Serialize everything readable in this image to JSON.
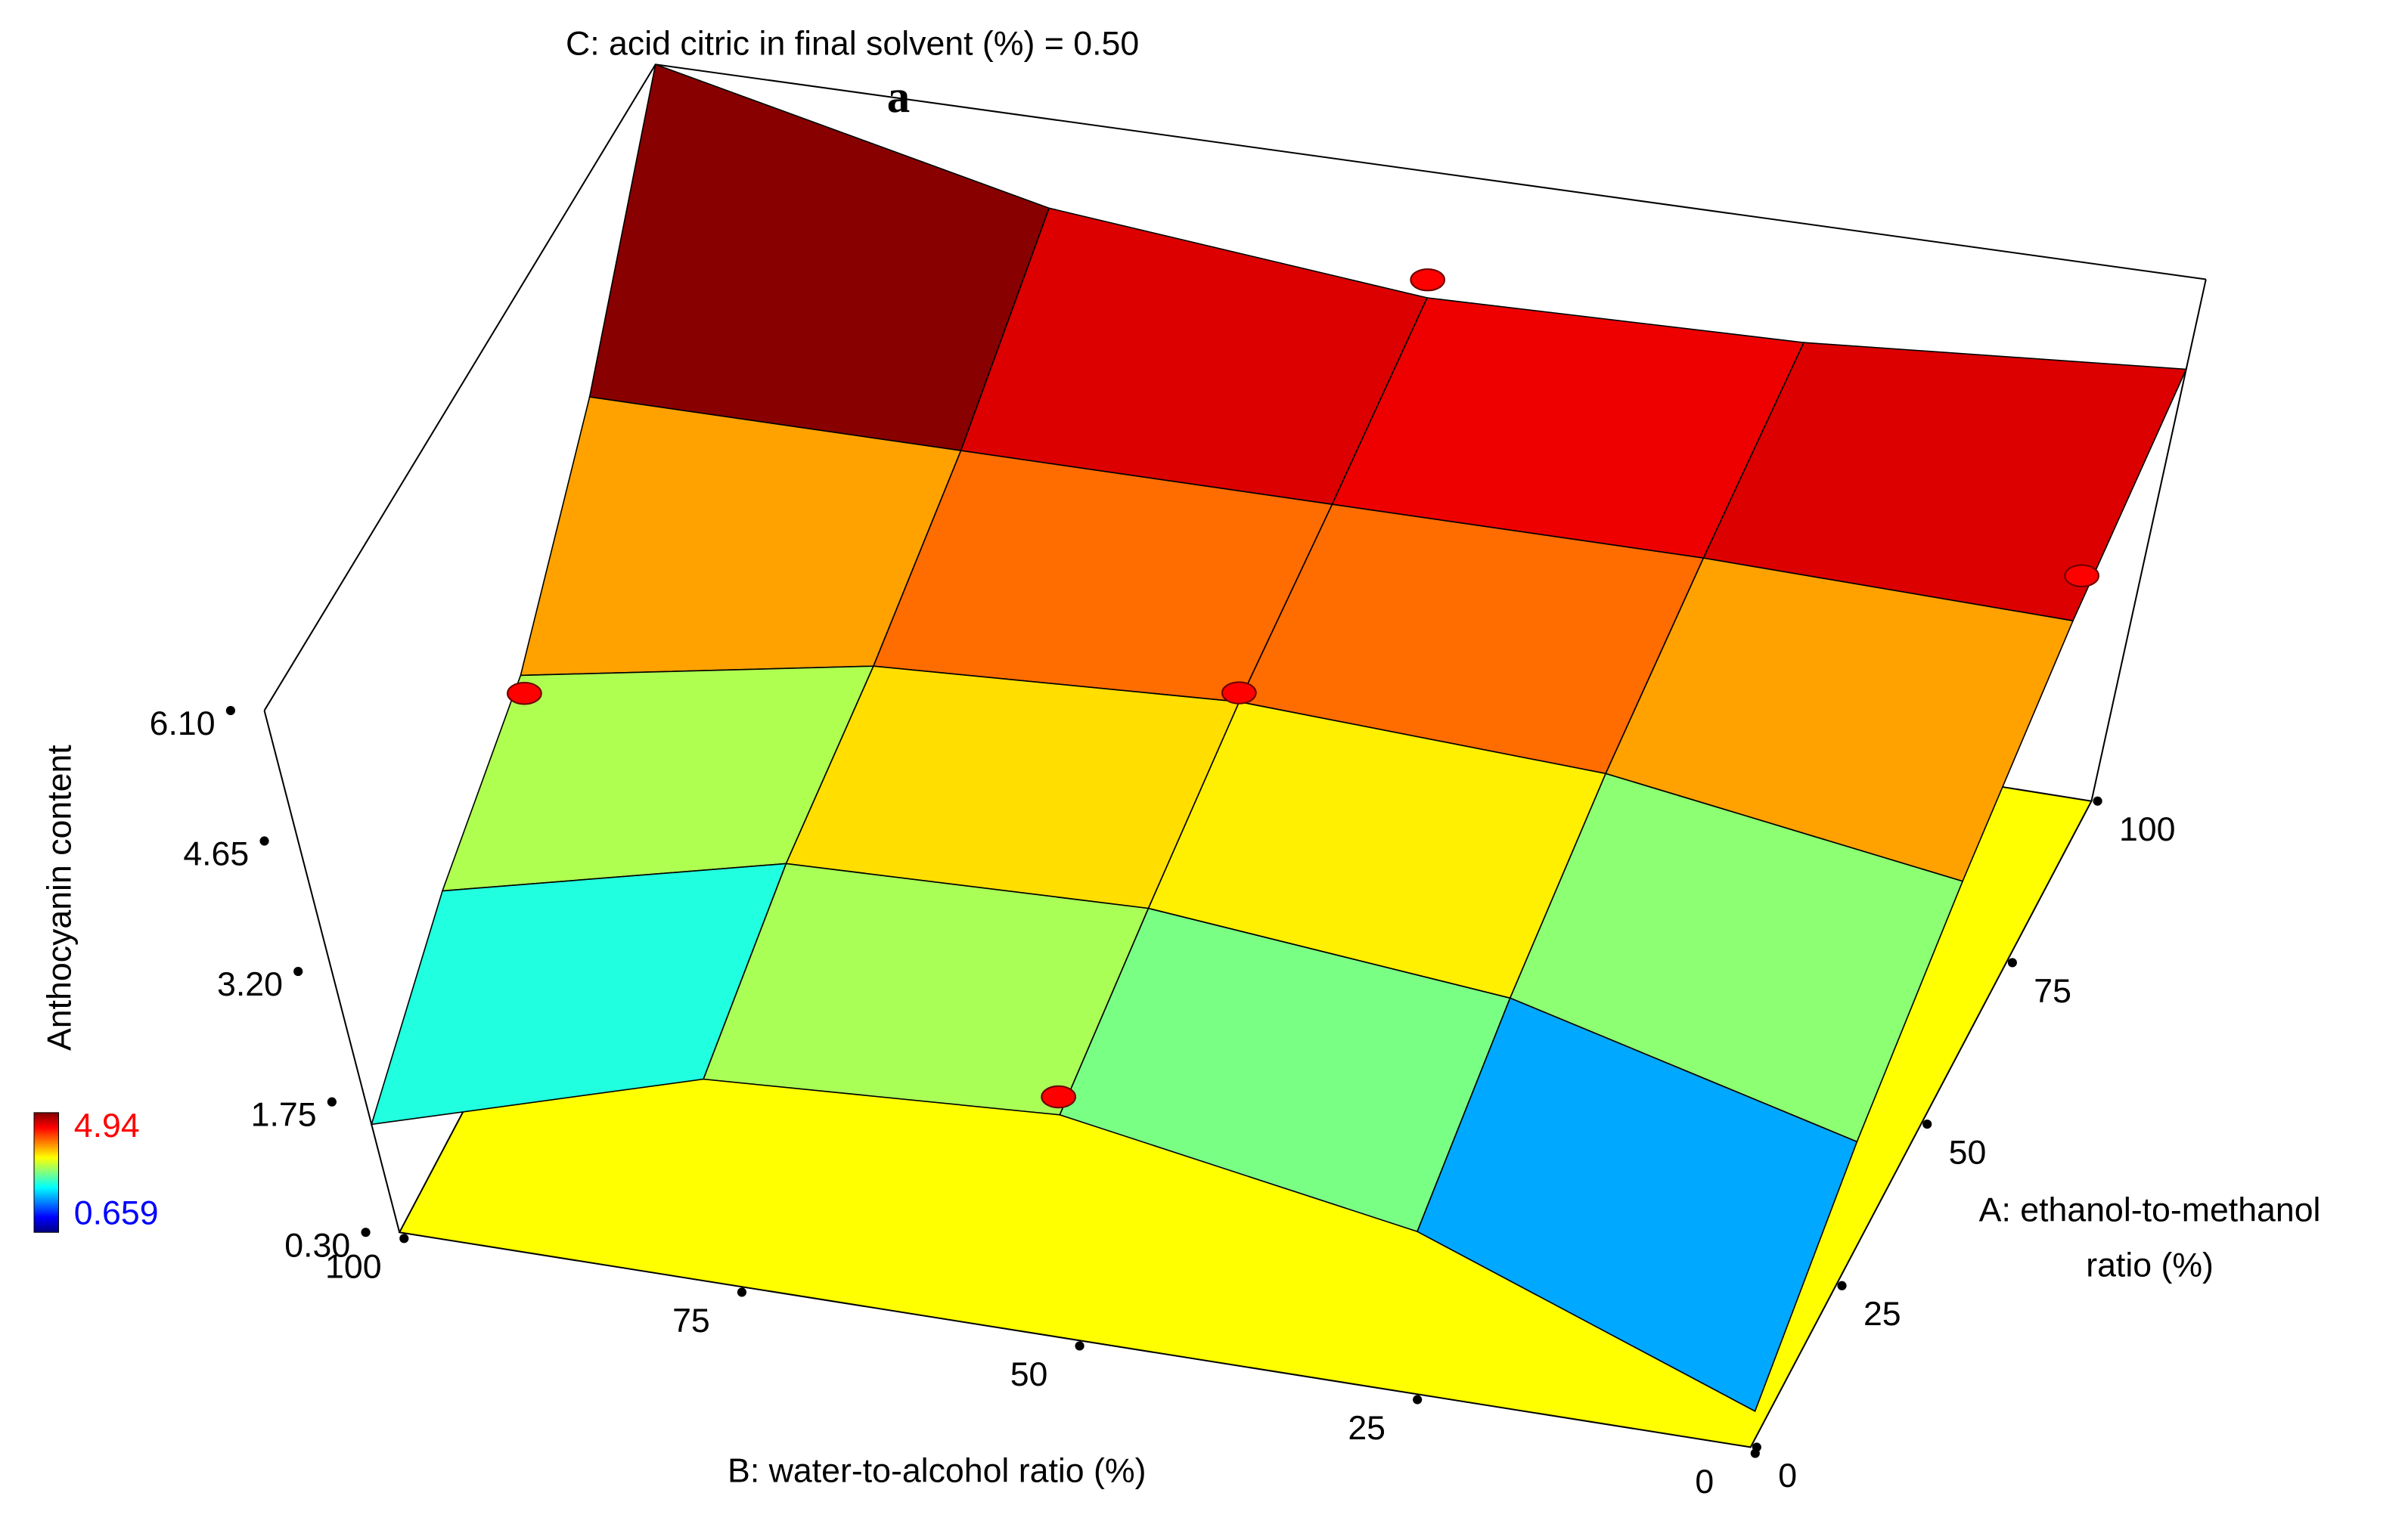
{
  "chart_data": {
    "type": "surface",
    "title": "C: acid citric in final solvent (%) = 0.50",
    "annotation": "a",
    "zlabel": "Anthocyanin content",
    "xlabel": [
      "A: ethanol-to-methanol",
      "ratio (%)"
    ],
    "ylabel": "B: water-to-alcohol ratio (%)",
    "xlim": [
      0,
      100
    ],
    "xticks": [
      0,
      25,
      50,
      75,
      100
    ],
    "ylim": [
      0,
      100
    ],
    "yticks": [
      0,
      25,
      50,
      75,
      100
    ],
    "zlim": [
      0.3,
      6.1
    ],
    "zticks": [
      {
        "value": 0.3,
        "label": "0.30"
      },
      1.75,
      {
        "value": 3.2,
        "label": "3.20"
      },
      4.65,
      {
        "value": 6.1,
        "label": "6.10"
      }
    ],
    "x": [
      0,
      25,
      50,
      75,
      100
    ],
    "y": [
      0,
      25,
      50,
      75,
      100
    ],
    "z": [
      [
        0.7,
        2.1,
        2.8,
        2.6,
        1.5
      ],
      [
        1.9,
        2.9,
        3.3,
        3.2,
        2.3
      ],
      [
        3.0,
        3.6,
        3.8,
        3.6,
        2.9
      ],
      [
        4.1,
        4.2,
        4.2,
        4.2,
        4.2
      ],
      [
        5.1,
        4.8,
        4.7,
        5.1,
        6.1
      ]
    ],
    "colormap": "jet",
    "colorbar": {
      "min": 0.659,
      "max": 4.94,
      "min_color": "#0000ff",
      "max_color": "#ff0000"
    },
    "floor_color": "#ffff00",
    "points": [
      {
        "x": 100,
        "y": 50,
        "z": 4.9
      },
      {
        "x": 50,
        "y": 50,
        "z": 3.9
      },
      {
        "x": 50,
        "y": 100,
        "z": 2.7
      },
      {
        "x": 0,
        "y": 50,
        "z": 3.0
      },
      {
        "x": 75,
        "y": 0,
        "z": 4.6
      }
    ],
    "point_color": "#ff0000"
  }
}
